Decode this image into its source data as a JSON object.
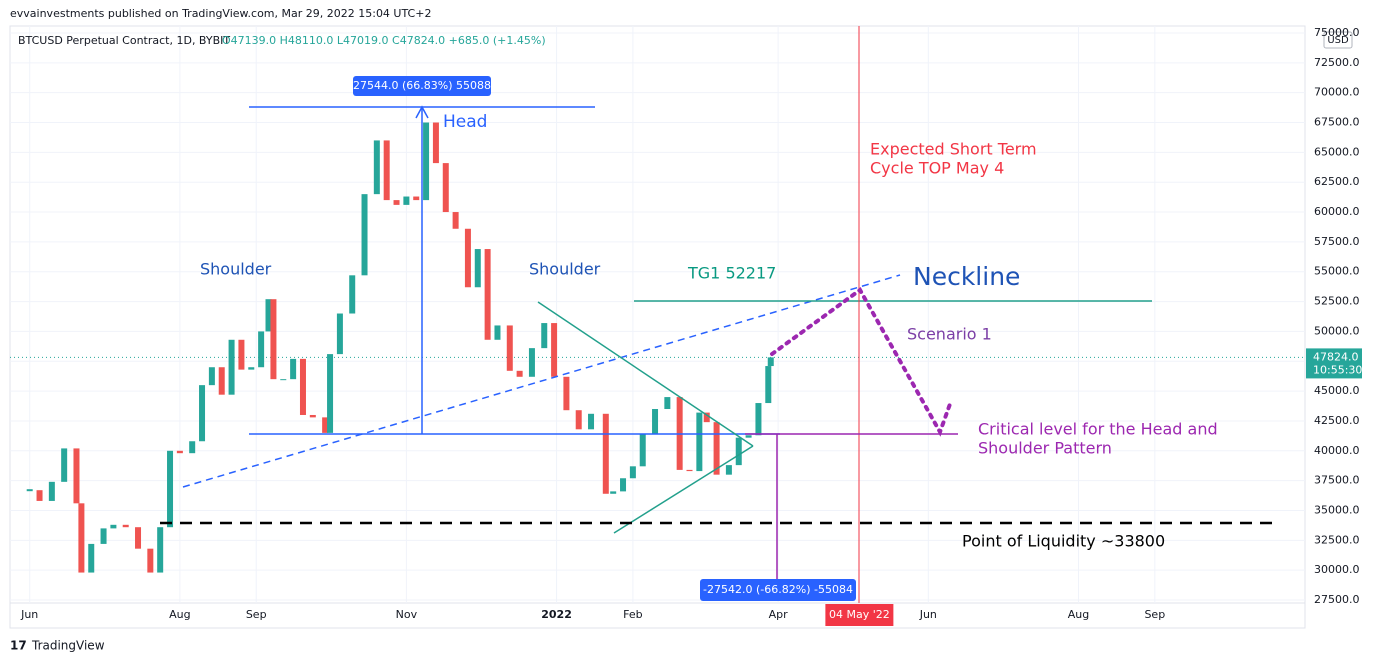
{
  "header": {
    "published": "evvainvestments published on TradingView.com, Mar 29, 2022 15:04 UTC+2",
    "footer": "TradingView"
  },
  "chart_data": {
    "type": "candlestick",
    "title": "BTCUSD Perpetual Contract, 1D, BYBIT",
    "legend_text": "O47139.0 H48110.0 L47019.0 C47824.0 +685.0 (+1.45%)",
    "currency": "USD",
    "up_color": "#26a69a",
    "down_color": "#ef5350",
    "x": [
      "2021-06-01",
      "2021-06-05",
      "2021-06-10",
      "2021-06-15",
      "2021-06-20",
      "2021-06-22",
      "2021-06-26",
      "2021-07-01",
      "2021-07-05",
      "2021-07-10",
      "2021-07-15",
      "2021-07-20",
      "2021-07-24",
      "2021-07-28",
      "2021-08-01",
      "2021-08-06",
      "2021-08-10",
      "2021-08-14",
      "2021-08-18",
      "2021-08-22",
      "2021-08-26",
      "2021-08-30",
      "2021-09-03",
      "2021-09-06",
      "2021-09-08",
      "2021-09-12",
      "2021-09-16",
      "2021-09-20",
      "2021-09-24",
      "2021-09-29",
      "2021-10-01",
      "2021-10-05",
      "2021-10-10",
      "2021-10-15",
      "2021-10-20",
      "2021-10-24",
      "2021-10-28",
      "2021-11-01",
      "2021-11-05",
      "2021-11-09",
      "2021-11-13",
      "2021-11-17",
      "2021-11-21",
      "2021-11-26",
      "2021-11-30",
      "2021-12-04",
      "2021-12-08",
      "2021-12-13",
      "2021-12-17",
      "2021-12-22",
      "2021-12-27",
      "2021-12-31",
      "2022-01-05",
      "2022-01-10",
      "2022-01-15",
      "2022-01-21",
      "2022-01-24",
      "2022-01-28",
      "2022-02-01",
      "2022-02-05",
      "2022-02-10",
      "2022-02-15",
      "2022-02-20",
      "2022-02-24",
      "2022-02-28",
      "2022-03-03",
      "2022-03-07",
      "2022-03-12",
      "2022-03-16",
      "2022-03-20",
      "2022-03-24",
      "2022-03-28",
      "2022-03-29"
    ],
    "values": [
      36700,
      35800,
      37400,
      40200,
      35600,
      29800,
      32200,
      33500,
      33800,
      33600,
      31800,
      29800,
      33600,
      40000,
      39800,
      40800,
      45500,
      47000,
      44700,
      49300,
      46800,
      47000,
      50000,
      52700,
      46000,
      46000,
      47700,
      43000,
      42800,
      41500,
      48100,
      51500,
      54700,
      61500,
      66000,
      61000,
      60600,
      61300,
      61000,
      67500,
      64100,
      60000,
      58600,
      53700,
      56900,
      49300,
      50500,
      46700,
      46200,
      48600,
      50700,
      46200,
      43400,
      41800,
      43100,
      36400,
      36600,
      37700,
      38700,
      41400,
      43500,
      44500,
      38400,
      38300,
      43200,
      42400,
      38000,
      38800,
      41100,
      41300,
      44000,
      47100,
      47824
    ],
    "last_price": {
      "value": 47824,
      "label": "47824.0"
    },
    "countdown": "10:55:30",
    "xlim": [
      "2021-05-24",
      "2022-11-01"
    ],
    "xticks": [
      {
        "value": "2021-06-01",
        "label": "Jun"
      },
      {
        "value": "2021-08-01",
        "label": "Aug"
      },
      {
        "value": "2021-09-01",
        "label": "Sep"
      },
      {
        "value": "2021-11-01",
        "label": "Nov"
      },
      {
        "value": "2022-01-01",
        "label": "2022"
      },
      {
        "value": "2022-02-01",
        "label": "Feb"
      },
      {
        "value": "2022-04-01",
        "label": "Apr"
      },
      {
        "value": "2022-06-01",
        "label": "Jun"
      },
      {
        "value": "2022-08-01",
        "label": "Aug"
      },
      {
        "value": "2022-09-01",
        "label": "Sep"
      }
    ],
    "marker_date": {
      "value": "2022-05-04",
      "label": "04 May '22"
    },
    "ylim": [
      27250,
      75250
    ],
    "yticks": [
      {
        "value": 27500,
        "label": "27500.0"
      },
      {
        "value": 30000,
        "label": "30000.0"
      },
      {
        "value": 32500,
        "label": "32500.0"
      },
      {
        "value": 35000,
        "label": "35000.0"
      },
      {
        "value": 37500,
        "label": "37500.0"
      },
      {
        "value": 40000,
        "label": "40000.0"
      },
      {
        "value": 42500,
        "label": "42500.0"
      },
      {
        "value": 45000,
        "label": "45000.0"
      },
      {
        "value": 47500,
        "label": "47500.0"
      },
      {
        "value": 50000,
        "label": "50000.0"
      },
      {
        "value": 52500,
        "label": "52500.0"
      },
      {
        "value": 55000,
        "label": "55000.0"
      },
      {
        "value": 57500,
        "label": "57500.0"
      },
      {
        "value": 60000,
        "label": "60000.0"
      },
      {
        "value": 62500,
        "label": "62500.0"
      },
      {
        "value": 65000,
        "label": "65000.0"
      },
      {
        "value": 67500,
        "label": "67500.0"
      },
      {
        "value": 70000,
        "label": "70000.0"
      },
      {
        "value": 72500,
        "label": "72500.0"
      },
      {
        "value": 75000,
        "label": "75000.0"
      }
    ],
    "grid": true,
    "annotations": {
      "head": "Head",
      "shoulder_left": "Shoulder",
      "shoulder_right": "Shoulder",
      "neckline": "Neckline",
      "target": "TG1 52217",
      "scenario": "Scenario 1",
      "cycle_top": [
        "Expected Short Term",
        "Cycle TOP May 4"
      ],
      "critical": [
        "Critical level for the Head and",
        "Shoulder Pattern"
      ],
      "liquidity": "Point of Liquidity ~33800",
      "measure_up": "27544.0 (66.83%) 55088",
      "measure_down": "-27542.0 (-66.82%) -55084"
    }
  }
}
